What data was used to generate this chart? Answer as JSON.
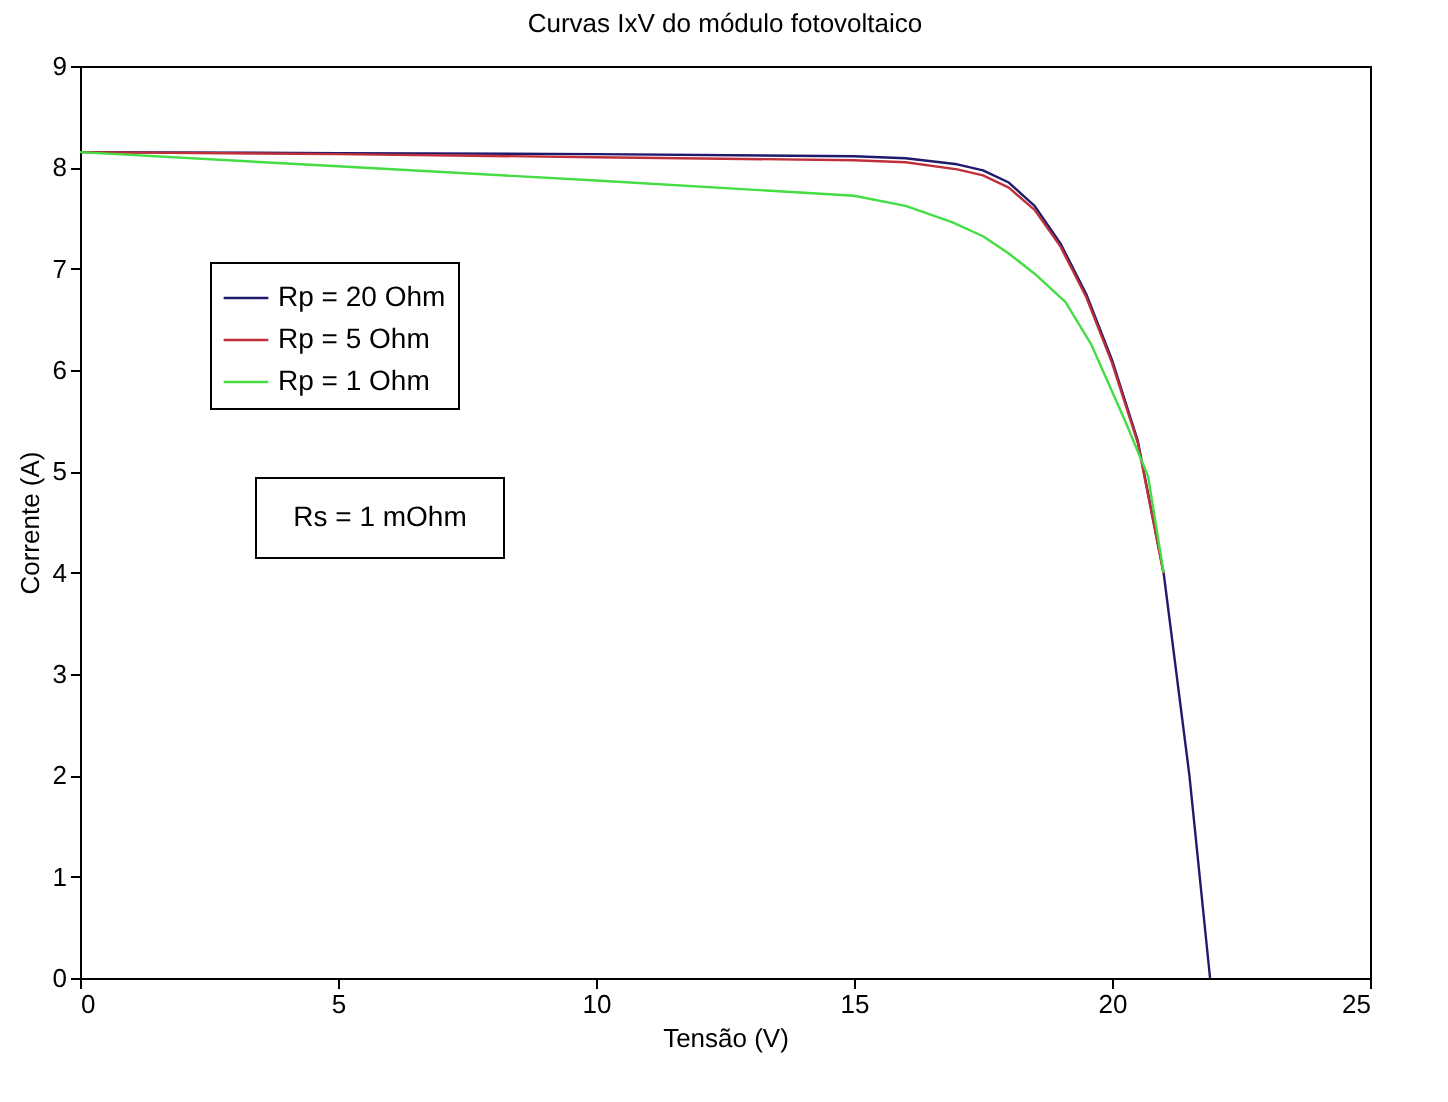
{
  "chart_data": {
    "type": "line",
    "title": "Curvas IxV do módulo fotovoltaico",
    "xlabel": "Tensão (V)",
    "ylabel": "Corrente (A)",
    "xlim": [
      0,
      25
    ],
    "ylim": [
      0,
      9
    ],
    "xticks": [
      0,
      5,
      10,
      15,
      20,
      25
    ],
    "yticks": [
      0,
      1,
      2,
      3,
      4,
      5,
      6,
      7,
      8,
      9
    ],
    "grid": false,
    "legend": "top left",
    "marker": "none",
    "line_style": "solid",
    "annotations": [
      "Rs = 1 mOhm"
    ],
    "series": [
      {
        "name": "Rp = 20 Ohm",
        "color": "#1f1a6e",
        "x": [
          0,
          5,
          10,
          15,
          16,
          17,
          17.5,
          18,
          18.5,
          19,
          19.5,
          20,
          20.5,
          21,
          21.5,
          21.9
        ],
        "values": [
          8.15,
          8.14,
          8.13,
          8.11,
          8.09,
          8.03,
          7.97,
          7.85,
          7.62,
          7.25,
          6.75,
          6.1,
          5.3,
          4.0,
          2.0,
          0
        ]
      },
      {
        "name": "Rp = 5 Ohm",
        "color": "#c0303a",
        "x": [
          0,
          5,
          10,
          15,
          16,
          17,
          17.5,
          18,
          18.5,
          19,
          19.5,
          20,
          20.5,
          21
        ],
        "values": [
          8.15,
          8.13,
          8.1,
          8.07,
          8.05,
          7.98,
          7.92,
          7.8,
          7.58,
          7.22,
          6.72,
          6.07,
          5.28,
          3.99
        ]
      },
      {
        "name": "Rp = 1 Ohm",
        "color": "#44dd44",
        "x": [
          0,
          5,
          10,
          15,
          16,
          16.9,
          17.5,
          18,
          18.5,
          19.1,
          19.6,
          20.27,
          20.7,
          21
        ],
        "values": [
          8.15,
          8.01,
          7.87,
          7.72,
          7.62,
          7.46,
          7.32,
          7.15,
          6.95,
          6.67,
          6.25,
          5.48,
          4.95,
          4.0
        ]
      }
    ]
  }
}
